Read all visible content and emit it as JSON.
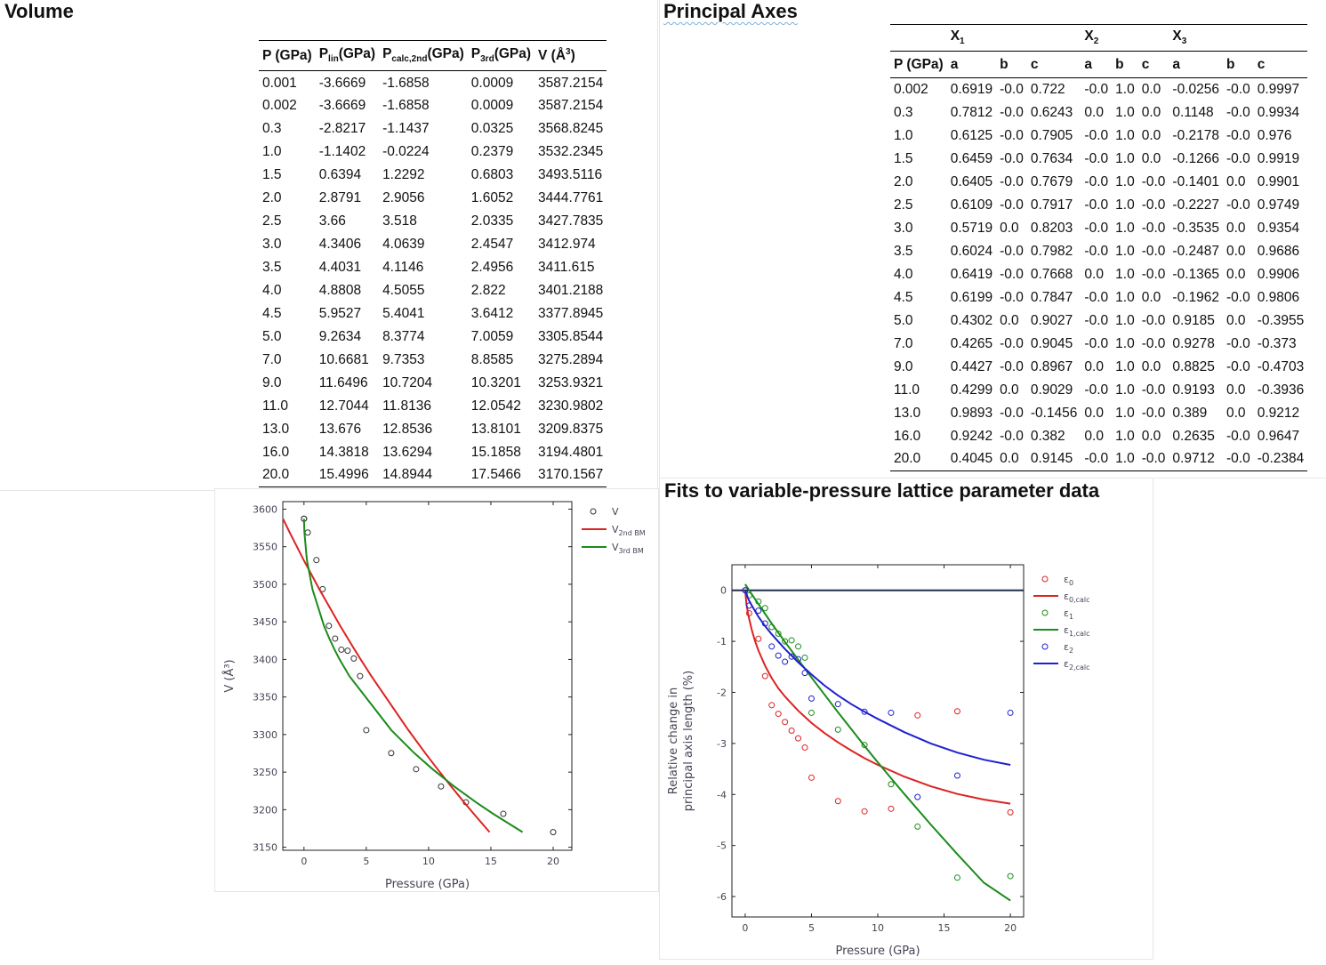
{
  "volume": {
    "title": "Volume",
    "headers": [
      "P (GPa)",
      "P",
      "lin",
      "(GPa)",
      "P",
      "calc,2nd",
      "(GPa)",
      "P",
      "3rd",
      "(GPa)",
      "V (Å",
      "3",
      ")"
    ],
    "rows": [
      [
        "0.001",
        "-3.6669",
        "-1.6858",
        "0.0009",
        "3587.2154"
      ],
      [
        "0.002",
        "-3.6669",
        "-1.6858",
        "0.0009",
        "3587.2154"
      ],
      [
        "0.3",
        "-2.8217",
        "-1.1437",
        "0.0325",
        "3568.8245"
      ],
      [
        "1.0",
        "-1.1402",
        "-0.0224",
        "0.2379",
        "3532.2345"
      ],
      [
        "1.5",
        "0.6394",
        "1.2292",
        "0.6803",
        "3493.5116"
      ],
      [
        "2.0",
        "2.8791",
        "2.9056",
        "1.6052",
        "3444.7761"
      ],
      [
        "2.5",
        "3.66",
        "3.518",
        "2.0335",
        "3427.7835"
      ],
      [
        "3.0",
        "4.3406",
        "4.0639",
        "2.4547",
        "3412.974"
      ],
      [
        "3.5",
        "4.4031",
        "4.1146",
        "2.4956",
        "3411.615"
      ],
      [
        "4.0",
        "4.8808",
        "4.5055",
        "2.822",
        "3401.2188"
      ],
      [
        "4.5",
        "5.9527",
        "5.4041",
        "3.6412",
        "3377.8945"
      ],
      [
        "5.0",
        "9.2634",
        "8.3774",
        "7.0059",
        "3305.8544"
      ],
      [
        "7.0",
        "10.6681",
        "9.7353",
        "8.8585",
        "3275.2894"
      ],
      [
        "9.0",
        "11.6496",
        "10.7204",
        "10.3201",
        "3253.9321"
      ],
      [
        "11.0",
        "12.7044",
        "11.8136",
        "12.0542",
        "3230.9802"
      ],
      [
        "13.0",
        "13.676",
        "12.8536",
        "13.8101",
        "3209.8375"
      ],
      [
        "16.0",
        "14.3818",
        "13.6294",
        "15.1858",
        "3194.4801"
      ],
      [
        "20.0",
        "15.4996",
        "14.8944",
        "17.5466",
        "3170.1567"
      ]
    ]
  },
  "axes": {
    "title": "Principal Axes",
    "group_headers": [
      "X",
      "1",
      "X",
      "2",
      "X",
      "3"
    ],
    "col_headers": [
      "P (GPa)",
      "a",
      "b",
      "c",
      "a",
      "b",
      "c",
      "a",
      "b",
      "c"
    ],
    "rows": [
      [
        "0.002",
        "0.6919",
        "-0.0",
        "0.722",
        "-0.0",
        "1.0",
        "0.0",
        "-0.0256",
        "-0.0",
        "0.9997"
      ],
      [
        "0.3",
        "0.7812",
        "-0.0",
        "0.6243",
        "0.0",
        "1.0",
        "0.0",
        "0.1148",
        "-0.0",
        "0.9934"
      ],
      [
        "1.0",
        "0.6125",
        "-0.0",
        "0.7905",
        "-0.0",
        "1.0",
        "0.0",
        "-0.2178",
        "-0.0",
        "0.976"
      ],
      [
        "1.5",
        "0.6459",
        "-0.0",
        "0.7634",
        "-0.0",
        "1.0",
        "0.0",
        "-0.1266",
        "-0.0",
        "0.9919"
      ],
      [
        "2.0",
        "0.6405",
        "-0.0",
        "0.7679",
        "-0.0",
        "1.0",
        "-0.0",
        "-0.1401",
        "0.0",
        "0.9901"
      ],
      [
        "2.5",
        "0.6109",
        "-0.0",
        "0.7917",
        "-0.0",
        "1.0",
        "-0.0",
        "-0.2227",
        "-0.0",
        "0.9749"
      ],
      [
        "3.0",
        "0.5719",
        "0.0",
        "0.8203",
        "-0.0",
        "1.0",
        "-0.0",
        "-0.3535",
        "0.0",
        "0.9354"
      ],
      [
        "3.5",
        "0.6024",
        "-0.0",
        "0.7982",
        "-0.0",
        "1.0",
        "-0.0",
        "-0.2487",
        "0.0",
        "0.9686"
      ],
      [
        "4.0",
        "0.6419",
        "-0.0",
        "0.7668",
        "0.0",
        "1.0",
        "-0.0",
        "-0.1365",
        "0.0",
        "0.9906"
      ],
      [
        "4.5",
        "0.6199",
        "-0.0",
        "0.7847",
        "-0.0",
        "1.0",
        "0.0",
        "-0.1962",
        "-0.0",
        "0.9806"
      ],
      [
        "5.0",
        "0.4302",
        "0.0",
        "0.9027",
        "-0.0",
        "1.0",
        "-0.0",
        "0.9185",
        "0.0",
        "-0.3955"
      ],
      [
        "7.0",
        "0.4265",
        "-0.0",
        "0.9045",
        "-0.0",
        "1.0",
        "-0.0",
        "0.9278",
        "-0.0",
        "-0.373"
      ],
      [
        "9.0",
        "0.4427",
        "-0.0",
        "0.8967",
        "0.0",
        "1.0",
        "0.0",
        "0.8825",
        "-0.0",
        "-0.4703"
      ],
      [
        "11.0",
        "0.4299",
        "0.0",
        "0.9029",
        "-0.0",
        "1.0",
        "-0.0",
        "0.9193",
        "0.0",
        "-0.3936"
      ],
      [
        "13.0",
        "0.9893",
        "-0.0",
        "-0.1456",
        "0.0",
        "1.0",
        "-0.0",
        "0.389",
        "0.0",
        "0.9212"
      ],
      [
        "16.0",
        "0.9242",
        "-0.0",
        "0.382",
        "0.0",
        "1.0",
        "0.0",
        "0.2635",
        "-0.0",
        "0.9647"
      ],
      [
        "20.0",
        "0.4045",
        "0.0",
        "0.9145",
        "-0.0",
        "1.0",
        "-0.0",
        "0.9712",
        "-0.0",
        "-0.2384"
      ]
    ]
  },
  "fits_title": "Fits to variable-pressure lattice parameter data",
  "colors": {
    "red": "#dd2222",
    "green": "#1a8c1a",
    "blue": "#2020d0",
    "black": "#333333",
    "navy": "#1f2f4f"
  },
  "chart_data": [
    {
      "type": "scatter",
      "id": "volume-chart",
      "xlabel": "Pressure (GPa)",
      "ylabel": "V (Å³)",
      "xlim": [
        -1.7,
        21.5
      ],
      "ylim": [
        3146,
        3610
      ],
      "xticks": [
        0,
        5,
        10,
        15,
        20
      ],
      "yticks": [
        3150,
        3200,
        3250,
        3300,
        3350,
        3400,
        3450,
        3500,
        3550,
        3600
      ],
      "legend": {
        "position": "outside-right",
        "entries": [
          {
            "label": "V",
            "sub": "",
            "kind": "marker",
            "color": "black"
          },
          {
            "label": "V",
            "sub": "2nd BM",
            "kind": "line",
            "color": "red"
          },
          {
            "label": "V",
            "sub": "3rd BM",
            "kind": "line",
            "color": "green"
          }
        ]
      },
      "series": [
        {
          "kind": "marker",
          "color": "black",
          "x": [
            0.001,
            0.002,
            0.3,
            1.0,
            1.5,
            2.0,
            2.5,
            3.0,
            3.5,
            4.0,
            4.5,
            5.0,
            7.0,
            9.0,
            11.0,
            13.0,
            16.0,
            20.0
          ],
          "y": [
            3587.2154,
            3587.2154,
            3568.8245,
            3532.2345,
            3493.5116,
            3444.7761,
            3427.7835,
            3412.974,
            3411.615,
            3401.2188,
            3377.8945,
            3305.8544,
            3275.2894,
            3253.9321,
            3230.9802,
            3209.8375,
            3194.4801,
            3170.1567
          ]
        },
        {
          "kind": "line",
          "color": "red",
          "x": [
            -1.686,
            -1.144,
            -0.022,
            1.229,
            2.906,
            3.518,
            4.064,
            4.115,
            4.506,
            5.404,
            8.377,
            9.735,
            10.72,
            11.814,
            12.854,
            13.629,
            14.894
          ],
          "y": [
            3587.2,
            3568.8,
            3532.2,
            3493.5,
            3444.8,
            3427.8,
            3413.0,
            3411.6,
            3401.2,
            3377.9,
            3305.9,
            3275.3,
            3253.9,
            3231.0,
            3209.8,
            3194.5,
            3170.2
          ]
        },
        {
          "kind": "line",
          "color": "green",
          "x": [
            0.0009,
            0.0325,
            0.2379,
            0.6803,
            1.6052,
            2.0335,
            2.4547,
            2.4956,
            2.822,
            3.6412,
            7.0059,
            8.8585,
            10.3201,
            12.0542,
            13.8101,
            15.1858,
            17.5466
          ],
          "y": [
            3587.2,
            3568.8,
            3532.2,
            3493.5,
            3444.8,
            3427.8,
            3413.0,
            3411.6,
            3401.2,
            3377.9,
            3305.9,
            3275.3,
            3253.9,
            3231.0,
            3209.8,
            3194.5,
            3170.2
          ]
        }
      ]
    },
    {
      "type": "scatter",
      "id": "fits-chart",
      "xlabel": "Pressure (GPa)",
      "ylabel": [
        "Relative change in",
        "principal axis length (%)"
      ],
      "xlim": [
        -1,
        21
      ],
      "ylim": [
        -6.4,
        0.5
      ],
      "xticks": [
        0,
        5,
        10,
        15,
        20
      ],
      "yticks": [
        0,
        -1,
        -2,
        -3,
        -4,
        -5,
        -6
      ],
      "zero_line": true,
      "legend": {
        "position": "outside-right",
        "entries": [
          {
            "label": "ε",
            "sub": "0",
            "kind": "marker",
            "color": "red"
          },
          {
            "label": "ε",
            "sub": "0,calc",
            "kind": "line",
            "color": "red"
          },
          {
            "label": "ε",
            "sub": "1",
            "kind": "marker",
            "color": "green"
          },
          {
            "label": "ε",
            "sub": "1,calc",
            "kind": "line",
            "color": "green"
          },
          {
            "label": "ε",
            "sub": "2",
            "kind": "marker",
            "color": "blue"
          },
          {
            "label": "ε",
            "sub": "2,calc",
            "kind": "line",
            "color": "blue"
          }
        ]
      },
      "series": [
        {
          "kind": "marker",
          "color": "red",
          "x": [
            0.001,
            0.3,
            1.0,
            1.5,
            2.0,
            2.5,
            3.0,
            3.5,
            4.0,
            4.5,
            5.0,
            7.0,
            9.0,
            11.0,
            20.0
          ],
          "y": [
            0.0,
            -0.45,
            -0.95,
            -1.68,
            -2.25,
            -2.42,
            -2.58,
            -2.75,
            -2.9,
            -3.08,
            -3.67,
            -4.13,
            -4.33,
            -4.28,
            -4.35
          ]
        },
        {
          "kind": "line",
          "color": "red",
          "x": [
            0,
            0.1,
            0.25,
            0.5,
            0.75,
            1,
            1.5,
            2,
            2.5,
            3,
            4,
            5,
            6,
            7,
            8,
            9,
            10,
            12,
            14,
            16,
            18,
            20
          ],
          "y": [
            0.0,
            -0.28,
            -0.5,
            -0.78,
            -1.0,
            -1.18,
            -1.48,
            -1.72,
            -1.92,
            -2.08,
            -2.36,
            -2.6,
            -2.8,
            -2.98,
            -3.14,
            -3.29,
            -3.42,
            -3.65,
            -3.84,
            -3.99,
            -4.1,
            -4.18
          ]
        },
        {
          "kind": "marker",
          "color": "green",
          "x": [
            0.001,
            0.3,
            1.0,
            1.5,
            2.0,
            2.5,
            3.0,
            3.5,
            4.0,
            4.5,
            5.0,
            7.0,
            9.0,
            11.0,
            13.0,
            16.0,
            20.0
          ],
          "y": [
            0.0,
            -0.1,
            -0.22,
            -0.35,
            -0.72,
            -0.85,
            -1.0,
            -0.98,
            -1.1,
            -1.32,
            -2.4,
            -2.73,
            -3.03,
            -3.8,
            -4.63,
            -5.63,
            -5.6
          ]
        },
        {
          "kind": "line",
          "color": "green",
          "x": [
            0,
            0.5,
            1,
            2,
            3,
            4,
            5,
            6,
            7,
            8,
            9,
            10,
            12,
            14,
            16,
            18,
            20
          ],
          "y": [
            0.12,
            -0.08,
            -0.27,
            -0.65,
            -1.01,
            -1.36,
            -1.71,
            -2.05,
            -2.39,
            -2.72,
            -3.05,
            -3.37,
            -3.99,
            -4.59,
            -5.17,
            -5.73,
            -6.08
          ]
        },
        {
          "kind": "marker",
          "color": "blue",
          "x": [
            0.001,
            0.3,
            1.0,
            1.5,
            2.0,
            2.5,
            3.0,
            3.5,
            4.0,
            4.5,
            5.0,
            7.0,
            9.0,
            11.0,
            13.0,
            16.0,
            20.0
          ],
          "y": [
            0.0,
            -0.3,
            -0.4,
            -0.65,
            -1.1,
            -1.28,
            -1.4,
            -1.3,
            -1.35,
            -1.62,
            -2.12,
            -2.23,
            -2.38,
            -2.4,
            -4.05,
            -3.63,
            -2.4
          ]
        },
        {
          "kind": "line",
          "color": "blue",
          "x": [
            0,
            0.25,
            0.5,
            1,
            1.5,
            2,
            3,
            4,
            5,
            6,
            7,
            8,
            9,
            10,
            12,
            14,
            16,
            18,
            20
          ],
          "y": [
            0.0,
            -0.18,
            -0.3,
            -0.52,
            -0.7,
            -0.86,
            -1.15,
            -1.41,
            -1.65,
            -1.87,
            -2.06,
            -2.23,
            -2.38,
            -2.52,
            -2.78,
            -3.0,
            -3.18,
            -3.32,
            -3.42
          ]
        },
        {
          "kind": "marker",
          "color": "red",
          "x": [
            13.0,
            16.0
          ],
          "y": [
            -2.45,
            -2.37
          ]
        }
      ]
    }
  ]
}
